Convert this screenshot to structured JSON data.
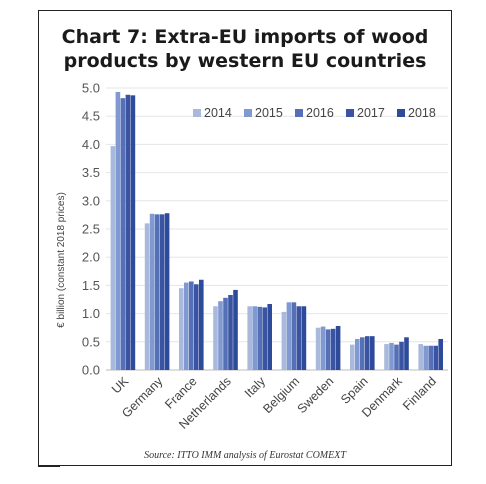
{
  "chart_data": {
    "type": "bar",
    "title_line1": "Chart 7: Extra-EU imports of wood",
    "title_line2": "products by western EU countries",
    "ylabel": "€ billion (constant 2018 prices)",
    "source": "Source: ITTO IMM analysis of Eurostat COMEXT",
    "ylim": [
      0,
      5.0
    ],
    "yticks": [
      "0.0",
      "0.5",
      "1.0",
      "1.5",
      "2.0",
      "2.5",
      "3.0",
      "3.5",
      "4.0",
      "4.5",
      "5.0"
    ],
    "legend_position": "top-right",
    "categories": [
      "UK",
      "Germany",
      "France",
      "Netherlands",
      "Italy",
      "Belgium",
      "Sweden",
      "Spain",
      "Denmark",
      "Finland"
    ],
    "series": [
      {
        "name": "2014",
        "color": "#a9b9dc",
        "values": [
          3.97,
          2.6,
          1.45,
          1.13,
          1.13,
          1.03,
          0.75,
          0.45,
          0.46,
          0.46
        ]
      },
      {
        "name": "2015",
        "color": "#8099d1",
        "values": [
          4.93,
          2.77,
          1.55,
          1.22,
          1.13,
          1.2,
          0.77,
          0.55,
          0.48,
          0.43
        ]
      },
      {
        "name": "2016",
        "color": "#5670b8",
        "values": [
          4.82,
          2.76,
          1.57,
          1.28,
          1.12,
          1.2,
          0.72,
          0.58,
          0.45,
          0.43
        ]
      },
      {
        "name": "2017",
        "color": "#3a54a2",
        "values": [
          4.88,
          2.76,
          1.52,
          1.33,
          1.11,
          1.13,
          0.73,
          0.6,
          0.5,
          0.43
        ]
      },
      {
        "name": "2018",
        "color": "#2e4a9b",
        "values": [
          4.87,
          2.78,
          1.6,
          1.42,
          1.17,
          1.13,
          0.78,
          0.6,
          0.58,
          0.55
        ]
      }
    ]
  }
}
